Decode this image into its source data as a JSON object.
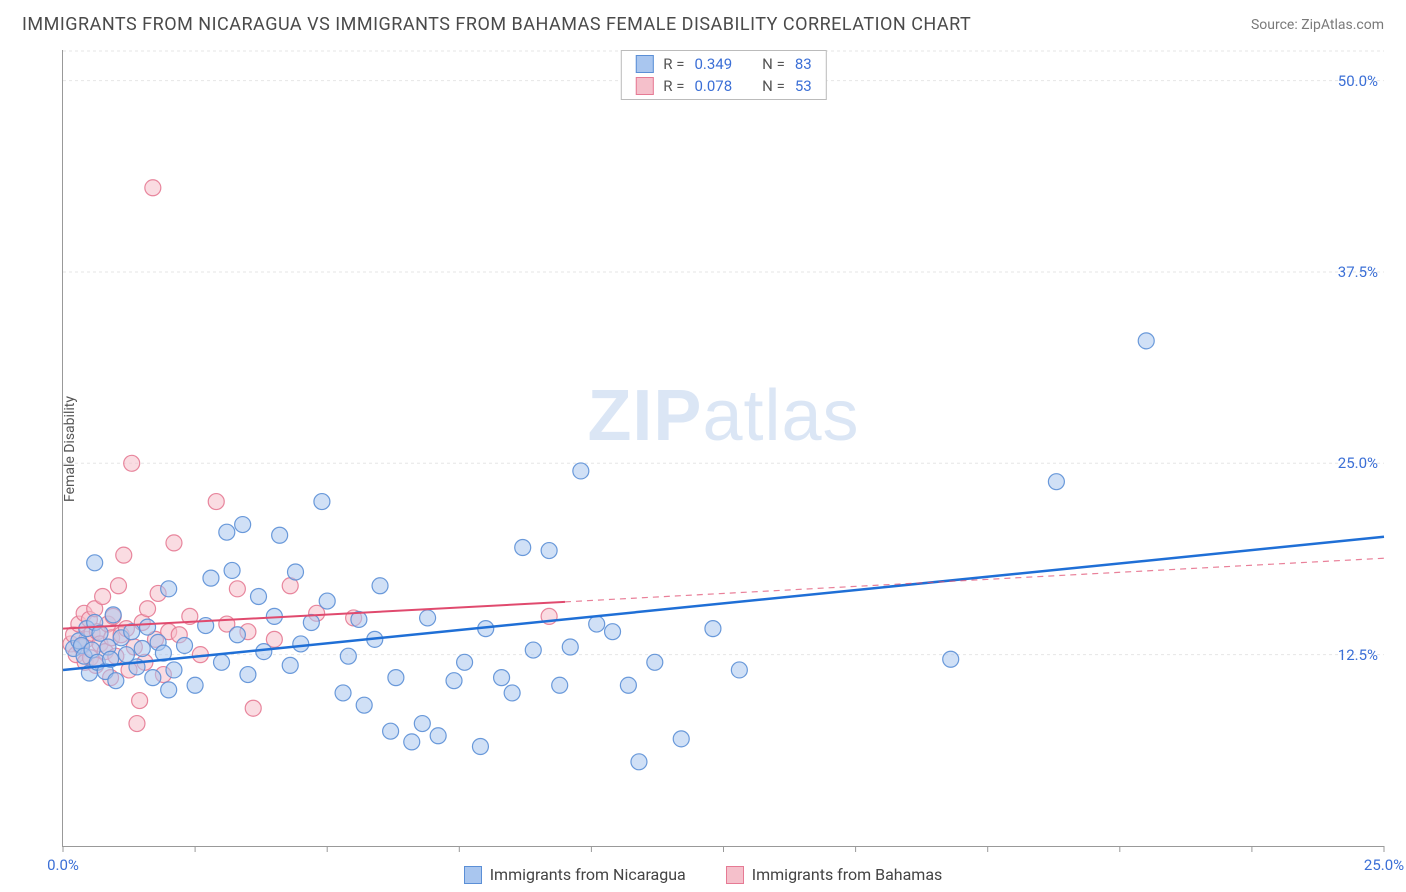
{
  "header": {
    "title": "IMMIGRANTS FROM NICARAGUA VS IMMIGRANTS FROM BAHAMAS FEMALE DISABILITY CORRELATION CHART",
    "source": "Source: ZipAtlas.com"
  },
  "yaxis": {
    "label": "Female Disability"
  },
  "watermark": {
    "bold": "ZIP",
    "rest": "atlas"
  },
  "chart": {
    "type": "scatter",
    "xlim": [
      0,
      25
    ],
    "ylim": [
      0,
      52
    ],
    "xticks": [
      0,
      2.5,
      5,
      7.5,
      10,
      12.5,
      15,
      17.5,
      20,
      22.5,
      25
    ],
    "xticks_labeled": {
      "0": "0.0%",
      "25": "25.0%"
    },
    "yticks": [
      12.5,
      25.0,
      37.5,
      50.0
    ],
    "yticks_labels": [
      "12.5%",
      "25.0%",
      "37.5%",
      "50.0%"
    ],
    "grid_color": "#e6e6e6",
    "background_color": "#ffffff",
    "marker_radius": 8,
    "marker_opacity": 0.55,
    "marker_stroke_opacity": 0.9,
    "series": [
      {
        "id": "nicaragua",
        "label": "Immigrants from Nicaragua",
        "color_fill": "#a9c6ef",
        "color_stroke": "#5b8fd6",
        "R": "0.349",
        "N": "83",
        "trend": {
          "x1": 0,
          "y1": 11.5,
          "x2": 25,
          "y2": 20.2,
          "color": "#1f6fd6",
          "width": 2.5,
          "solid_until_x": 25
        },
        "points": [
          [
            0.2,
            12.9
          ],
          [
            0.3,
            13.4
          ],
          [
            0.35,
            13.1
          ],
          [
            0.4,
            12.4
          ],
          [
            0.45,
            14.2
          ],
          [
            0.5,
            11.3
          ],
          [
            0.55,
            12.8
          ],
          [
            0.6,
            14.6
          ],
          [
            0.65,
            12.0
          ],
          [
            0.7,
            13.9
          ],
          [
            0.8,
            11.4
          ],
          [
            0.85,
            13.0
          ],
          [
            0.9,
            12.2
          ],
          [
            0.95,
            15.1
          ],
          [
            1.0,
            10.8
          ],
          [
            1.1,
            13.6
          ],
          [
            1.2,
            12.5
          ],
          [
            1.3,
            14.0
          ],
          [
            1.4,
            11.7
          ],
          [
            1.5,
            12.9
          ],
          [
            1.6,
            14.3
          ],
          [
            1.7,
            11.0
          ],
          [
            1.8,
            13.3
          ],
          [
            1.9,
            12.6
          ],
          [
            2.0,
            16.8
          ],
          [
            2.1,
            11.5
          ],
          [
            2.3,
            13.1
          ],
          [
            2.5,
            10.5
          ],
          [
            2.7,
            14.4
          ],
          [
            2.8,
            17.5
          ],
          [
            3.0,
            12.0
          ],
          [
            3.1,
            20.5
          ],
          [
            3.3,
            13.8
          ],
          [
            3.4,
            21.0
          ],
          [
            3.5,
            11.2
          ],
          [
            3.7,
            16.3
          ],
          [
            3.8,
            12.7
          ],
          [
            4.0,
            15.0
          ],
          [
            4.1,
            20.3
          ],
          [
            4.3,
            11.8
          ],
          [
            4.4,
            17.9
          ],
          [
            4.5,
            13.2
          ],
          [
            4.7,
            14.6
          ],
          [
            4.9,
            22.5
          ],
          [
            5.0,
            16.0
          ],
          [
            5.3,
            10.0
          ],
          [
            5.4,
            12.4
          ],
          [
            5.6,
            14.8
          ],
          [
            5.7,
            9.2
          ],
          [
            5.9,
            13.5
          ],
          [
            6.0,
            17.0
          ],
          [
            6.2,
            7.5
          ],
          [
            6.3,
            11.0
          ],
          [
            6.6,
            6.8
          ],
          [
            6.8,
            8.0
          ],
          [
            6.9,
            14.9
          ],
          [
            7.1,
            7.2
          ],
          [
            7.4,
            10.8
          ],
          [
            7.6,
            12.0
          ],
          [
            7.9,
            6.5
          ],
          [
            8.0,
            14.2
          ],
          [
            8.3,
            11.0
          ],
          [
            8.5,
            10.0
          ],
          [
            8.7,
            19.5
          ],
          [
            8.9,
            12.8
          ],
          [
            9.2,
            19.3
          ],
          [
            9.4,
            10.5
          ],
          [
            9.6,
            13.0
          ],
          [
            9.8,
            24.5
          ],
          [
            10.1,
            14.5
          ],
          [
            10.4,
            14.0
          ],
          [
            10.7,
            10.5
          ],
          [
            10.9,
            5.5
          ],
          [
            11.2,
            12.0
          ],
          [
            11.7,
            7.0
          ],
          [
            12.3,
            14.2
          ],
          [
            12.8,
            11.5
          ],
          [
            16.8,
            12.2
          ],
          [
            18.8,
            23.8
          ],
          [
            20.5,
            33.0
          ],
          [
            0.6,
            18.5
          ],
          [
            2.0,
            10.2
          ],
          [
            3.2,
            18.0
          ]
        ]
      },
      {
        "id": "bahamas",
        "label": "Immigrants from Bahamas",
        "color_fill": "#f5c0cb",
        "color_stroke": "#e67a94",
        "R": "0.078",
        "N": "53",
        "trend": {
          "x1": 0,
          "y1": 14.2,
          "x2": 25,
          "y2": 18.8,
          "color": "#e04a6e",
          "width": 2,
          "solid_until_x": 9.5
        },
        "points": [
          [
            0.15,
            13.2
          ],
          [
            0.2,
            13.8
          ],
          [
            0.25,
            12.5
          ],
          [
            0.3,
            14.5
          ],
          [
            0.35,
            13.0
          ],
          [
            0.4,
            15.2
          ],
          [
            0.42,
            12.0
          ],
          [
            0.45,
            13.5
          ],
          [
            0.5,
            14.8
          ],
          [
            0.52,
            12.3
          ],
          [
            0.55,
            13.9
          ],
          [
            0.6,
            15.5
          ],
          [
            0.62,
            11.8
          ],
          [
            0.65,
            14.0
          ],
          [
            0.7,
            13.2
          ],
          [
            0.75,
            16.3
          ],
          [
            0.8,
            12.7
          ],
          [
            0.85,
            14.5
          ],
          [
            0.9,
            11.0
          ],
          [
            0.92,
            13.6
          ],
          [
            0.95,
            15.0
          ],
          [
            1.0,
            12.4
          ],
          [
            1.05,
            17.0
          ],
          [
            1.1,
            13.8
          ],
          [
            1.15,
            19.0
          ],
          [
            1.2,
            14.2
          ],
          [
            1.25,
            11.5
          ],
          [
            1.3,
            25.0
          ],
          [
            1.35,
            13.0
          ],
          [
            1.4,
            8.0
          ],
          [
            1.45,
            9.5
          ],
          [
            1.5,
            14.6
          ],
          [
            1.55,
            12.0
          ],
          [
            1.6,
            15.5
          ],
          [
            1.7,
            43.0
          ],
          [
            1.75,
            13.5
          ],
          [
            1.8,
            16.5
          ],
          [
            1.9,
            11.2
          ],
          [
            2.0,
            14.0
          ],
          [
            2.1,
            19.8
          ],
          [
            2.2,
            13.8
          ],
          [
            2.4,
            15.0
          ],
          [
            2.6,
            12.5
          ],
          [
            2.9,
            22.5
          ],
          [
            3.1,
            14.5
          ],
          [
            3.3,
            16.8
          ],
          [
            3.5,
            14.0
          ],
          [
            3.6,
            9.0
          ],
          [
            4.0,
            13.5
          ],
          [
            4.3,
            17.0
          ],
          [
            4.8,
            15.2
          ],
          [
            5.5,
            14.9
          ],
          [
            9.2,
            15.0
          ]
        ]
      }
    ]
  },
  "legend_top": {
    "rows": [
      {
        "swatch_fill": "#a9c6ef",
        "swatch_stroke": "#5b8fd6",
        "r_label": "R =",
        "r_val": "0.349",
        "n_label": "N =",
        "n_val": "83"
      },
      {
        "swatch_fill": "#f5c0cb",
        "swatch_stroke": "#e67a94",
        "r_label": "R =",
        "r_val": "0.078",
        "n_label": "N =",
        "n_val": "53"
      }
    ]
  },
  "legend_bottom": {
    "items": [
      {
        "swatch_fill": "#a9c6ef",
        "swatch_stroke": "#5b8fd6",
        "label": "Immigrants from Nicaragua"
      },
      {
        "swatch_fill": "#f5c0cb",
        "swatch_stroke": "#e67a94",
        "label": "Immigrants from Bahamas"
      }
    ]
  }
}
